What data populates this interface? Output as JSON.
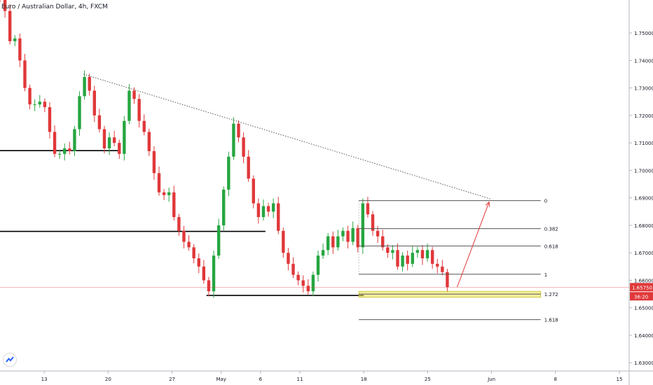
{
  "header": {
    "title": "Euro / Australian Dollar, 4h, FXCM"
  },
  "colors": {
    "up": "#26a641",
    "down": "#e0383a",
    "level": "#000000",
    "fib": "#555555",
    "zone": "#e9e24c",
    "price_line": "#e0383a",
    "arrow": "#e0383a"
  },
  "price_label": {
    "value": "1.65750",
    "countdown": "36:20"
  },
  "icons": {
    "logo": "tradingview-logo-icon"
  },
  "chart_data": {
    "type": "candlestick",
    "title": "Euro / Australian Dollar, 4h, FXCM",
    "ylim": [
      1.627,
      1.762
    ],
    "xlim": [
      0,
      128
    ],
    "y_ticks": [
      "1.75000",
      "1.74000",
      "1.73000",
      "1.72000",
      "1.71000",
      "1.70000",
      "1.69000",
      "1.68000",
      "1.67000",
      "1.66000",
      "1.65000",
      "1.64000",
      "1.63000"
    ],
    "y_tick_values": [
      1.75,
      1.74,
      1.73,
      1.72,
      1.71,
      1.7,
      1.69,
      1.68,
      1.67,
      1.66,
      1.65,
      1.64,
      1.63
    ],
    "x_ticks": [
      {
        "label": "13",
        "t": 9
      },
      {
        "label": "20",
        "t": 22
      },
      {
        "label": "27",
        "t": 35
      },
      {
        "label": "May",
        "t": 45
      },
      {
        "label": "6",
        "t": 53
      },
      {
        "label": "11",
        "t": 61
      },
      {
        "label": "18",
        "t": 74
      },
      {
        "label": "25",
        "t": 87
      },
      {
        "label": "Jun",
        "t": 100
      },
      {
        "label": "8",
        "t": 113
      },
      {
        "label": "15",
        "t": 126
      }
    ],
    "candles_close": [
      1.763,
      1.758,
      1.747,
      1.748,
      1.74,
      1.73,
      1.724,
      1.724,
      1.725,
      1.723,
      1.714,
      1.706,
      1.706,
      1.708,
      1.707,
      1.715,
      1.727,
      1.734,
      1.729,
      1.72,
      1.715,
      1.708,
      1.712,
      1.71,
      1.706,
      1.718,
      1.729,
      1.726,
      1.718,
      1.714,
      1.707,
      1.699,
      1.692,
      1.691,
      1.692,
      1.683,
      1.678,
      1.674,
      1.672,
      1.668,
      1.665,
      1.66,
      1.656,
      1.669,
      1.68,
      1.693,
      1.705,
      1.717,
      1.712,
      1.705,
      1.697,
      1.688,
      1.683,
      1.687,
      1.685,
      1.688,
      1.678,
      1.67,
      1.666,
      1.662,
      1.66,
      1.658,
      1.656,
      1.662,
      1.669,
      1.671,
      1.676,
      1.672,
      1.676,
      1.678,
      1.674,
      1.679,
      1.672,
      1.688,
      1.684,
      1.678,
      1.676,
      1.672,
      1.67,
      1.671,
      1.665,
      1.669,
      1.666,
      1.67,
      1.671,
      1.668,
      1.671,
      1.666,
      1.665,
      1.663,
      1.6575
    ],
    "levels": [
      {
        "name": "support-level-1",
        "value": 1.7072,
        "t_start": -1,
        "t_end": 24
      },
      {
        "name": "support-level-2",
        "value": 1.6778,
        "t_start": -1,
        "t_end": 54
      },
      {
        "name": "support-level-3",
        "value": 1.6545,
        "t_start": 42,
        "t_end": 74
      }
    ],
    "trendline": {
      "t_start": 17,
      "value_start": 1.735,
      "t_end": 100,
      "value_end": 1.6895
    },
    "fib": [
      {
        "label": "0",
        "value": 1.689
      },
      {
        "label": "0.382",
        "value": 1.6788
      },
      {
        "label": "0.618",
        "value": 1.6725
      },
      {
        "label": "1",
        "value": 1.6622
      },
      {
        "label": "1.272",
        "value": 1.655
      },
      {
        "label": "1.618",
        "value": 1.6457
      }
    ],
    "fib_t_start": 73,
    "fib_t_end": 110,
    "target_zone": {
      "top": 1.656,
      "bottom": 1.6538,
      "t_start": 73,
      "t_end": 110
    },
    "arrow": {
      "t_start": 93,
      "value_start": 1.6575,
      "t_end": 99.5,
      "value_end": 1.6885
    }
  }
}
